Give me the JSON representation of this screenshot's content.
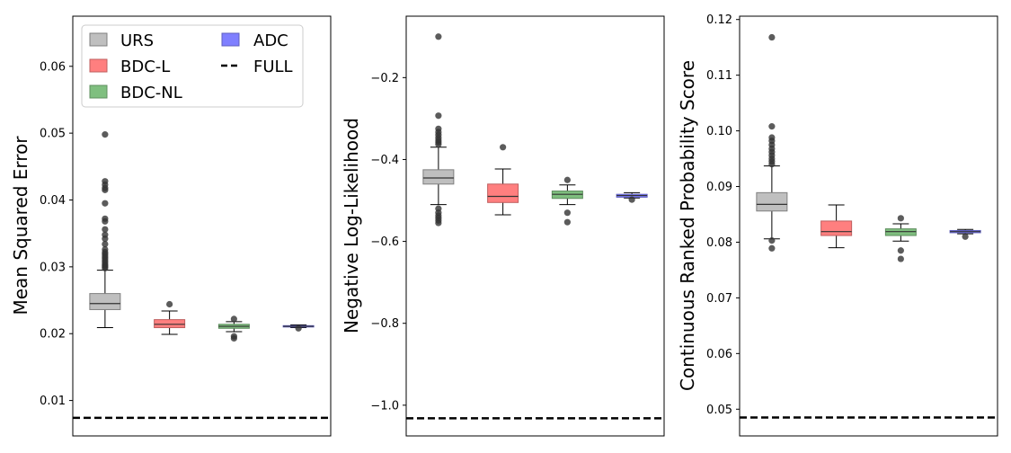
{
  "legend": {
    "entries": [
      {
        "label": "URS",
        "kind": "box",
        "fill": "#bfbfbf",
        "stroke": "#7f7f7f"
      },
      {
        "label": "BDC-L",
        "kind": "box",
        "fill": "#ff7f7f",
        "stroke": "#bf5f5f"
      },
      {
        "label": "BDC-NL",
        "kind": "box",
        "fill": "#7fbf7f",
        "stroke": "#5f8f5f"
      },
      {
        "label": "ADC",
        "kind": "box",
        "fill": "#7f7fff",
        "stroke": "#5f5fbf"
      },
      {
        "label": "FULL",
        "kind": "dashed",
        "fill": "#000000",
        "stroke": "#000000"
      }
    ]
  },
  "chart_data": [
    {
      "type": "box",
      "ylabel": "Mean Squared Error",
      "ylim": [
        0.0047,
        0.0675
      ],
      "yticks": [
        0.01,
        0.02,
        0.03,
        0.04,
        0.05,
        0.06
      ],
      "ytick_labels": [
        "0.01",
        "0.02",
        "0.03",
        "0.04",
        "0.05",
        "0.06"
      ],
      "full_line": 0.0074,
      "boxes": [
        {
          "series": "URS",
          "q1": 0.0236,
          "median": 0.0245,
          "q3": 0.026,
          "whislo": 0.0209,
          "whishi": 0.0295,
          "fliers": [
            0.0498,
            0.0428,
            0.0423,
            0.0418,
            0.0415,
            0.0395,
            0.0372,
            0.0368,
            0.0356,
            0.0348,
            0.0342,
            0.0334,
            0.0326,
            0.0322,
            0.0319,
            0.0316,
            0.0313,
            0.031,
            0.0307,
            0.0304,
            0.0302,
            0.03,
            0.0298
          ]
        },
        {
          "series": "BDC-L",
          "q1": 0.0209,
          "median": 0.0214,
          "q3": 0.0221,
          "whislo": 0.0199,
          "whishi": 0.0234,
          "fliers": [
            0.0244
          ]
        },
        {
          "series": "BDC-NL",
          "q1": 0.0208,
          "median": 0.0211,
          "q3": 0.0214,
          "whislo": 0.0203,
          "whishi": 0.0218,
          "fliers": [
            0.0222,
            0.0196,
            0.0193
          ]
        },
        {
          "series": "ADC",
          "q1": 0.021,
          "median": 0.0211,
          "q3": 0.0212,
          "whislo": 0.0209,
          "whishi": 0.0213,
          "fliers": [
            0.0208
          ]
        }
      ]
    },
    {
      "type": "box",
      "ylabel": "Negative Log-Likelihood",
      "ylim": [
        -1.075,
        -0.05
      ],
      "yticks": [
        -1.0,
        -0.8,
        -0.6,
        -0.4,
        -0.2
      ],
      "ytick_labels": [
        "−1.0",
        "−0.8",
        "−0.6",
        "−0.4",
        "−0.2"
      ],
      "full_line": -1.032,
      "boxes": [
        {
          "series": "URS",
          "q1": -0.46,
          "median": -0.445,
          "q3": -0.425,
          "whislo": -0.51,
          "whishi": -0.37,
          "fliers": [
            -0.1,
            -0.293,
            -0.325,
            -0.333,
            -0.34,
            -0.347,
            -0.353,
            -0.358,
            -0.363,
            -0.52,
            -0.53,
            -0.537,
            -0.543,
            -0.549,
            -0.555
          ]
        },
        {
          "series": "BDC-L",
          "q1": -0.505,
          "median": -0.49,
          "q3": -0.46,
          "whislo": -0.535,
          "whishi": -0.423,
          "fliers": [
            -0.37
          ]
        },
        {
          "series": "BDC-NL",
          "q1": -0.495,
          "median": -0.485,
          "q3": -0.477,
          "whislo": -0.51,
          "whishi": -0.462,
          "fliers": [
            -0.45,
            -0.53,
            -0.553
          ]
        },
        {
          "series": "ADC",
          "q1": -0.492,
          "median": -0.488,
          "q3": -0.485,
          "whislo": -0.494,
          "whishi": -0.481,
          "fliers": [
            -0.498
          ]
        }
      ]
    },
    {
      "type": "box",
      "ylabel": "Continuous Ranked Probability Score",
      "ylim": [
        0.0452,
        0.1206
      ],
      "yticks": [
        0.05,
        0.06,
        0.07,
        0.08,
        0.09,
        0.1,
        0.11,
        0.12
      ],
      "ytick_labels": [
        "0.05",
        "0.06",
        "0.07",
        "0.08",
        "0.09",
        "0.10",
        "0.11",
        "0.12"
      ],
      "full_line": 0.0485,
      "boxes": [
        {
          "series": "URS",
          "q1": 0.0856,
          "median": 0.0868,
          "q3": 0.0889,
          "whislo": 0.0806,
          "whishi": 0.0937,
          "fliers": [
            0.1168,
            0.1008,
            0.0988,
            0.0982,
            0.0975,
            0.0968,
            0.0962,
            0.0956,
            0.095,
            0.0945,
            0.094,
            0.0803,
            0.0789
          ]
        },
        {
          "series": "BDC-L",
          "q1": 0.0812,
          "median": 0.0819,
          "q3": 0.0838,
          "whislo": 0.079,
          "whishi": 0.0867,
          "fliers": []
        },
        {
          "series": "BDC-NL",
          "q1": 0.0812,
          "median": 0.0819,
          "q3": 0.0824,
          "whislo": 0.0802,
          "whishi": 0.0833,
          "fliers": [
            0.0843,
            0.0785,
            0.077
          ]
        },
        {
          "series": "ADC",
          "q1": 0.0817,
          "median": 0.0819,
          "q3": 0.0821,
          "whislo": 0.0815,
          "whishi": 0.0823,
          "fliers": [
            0.081
          ]
        }
      ]
    }
  ]
}
